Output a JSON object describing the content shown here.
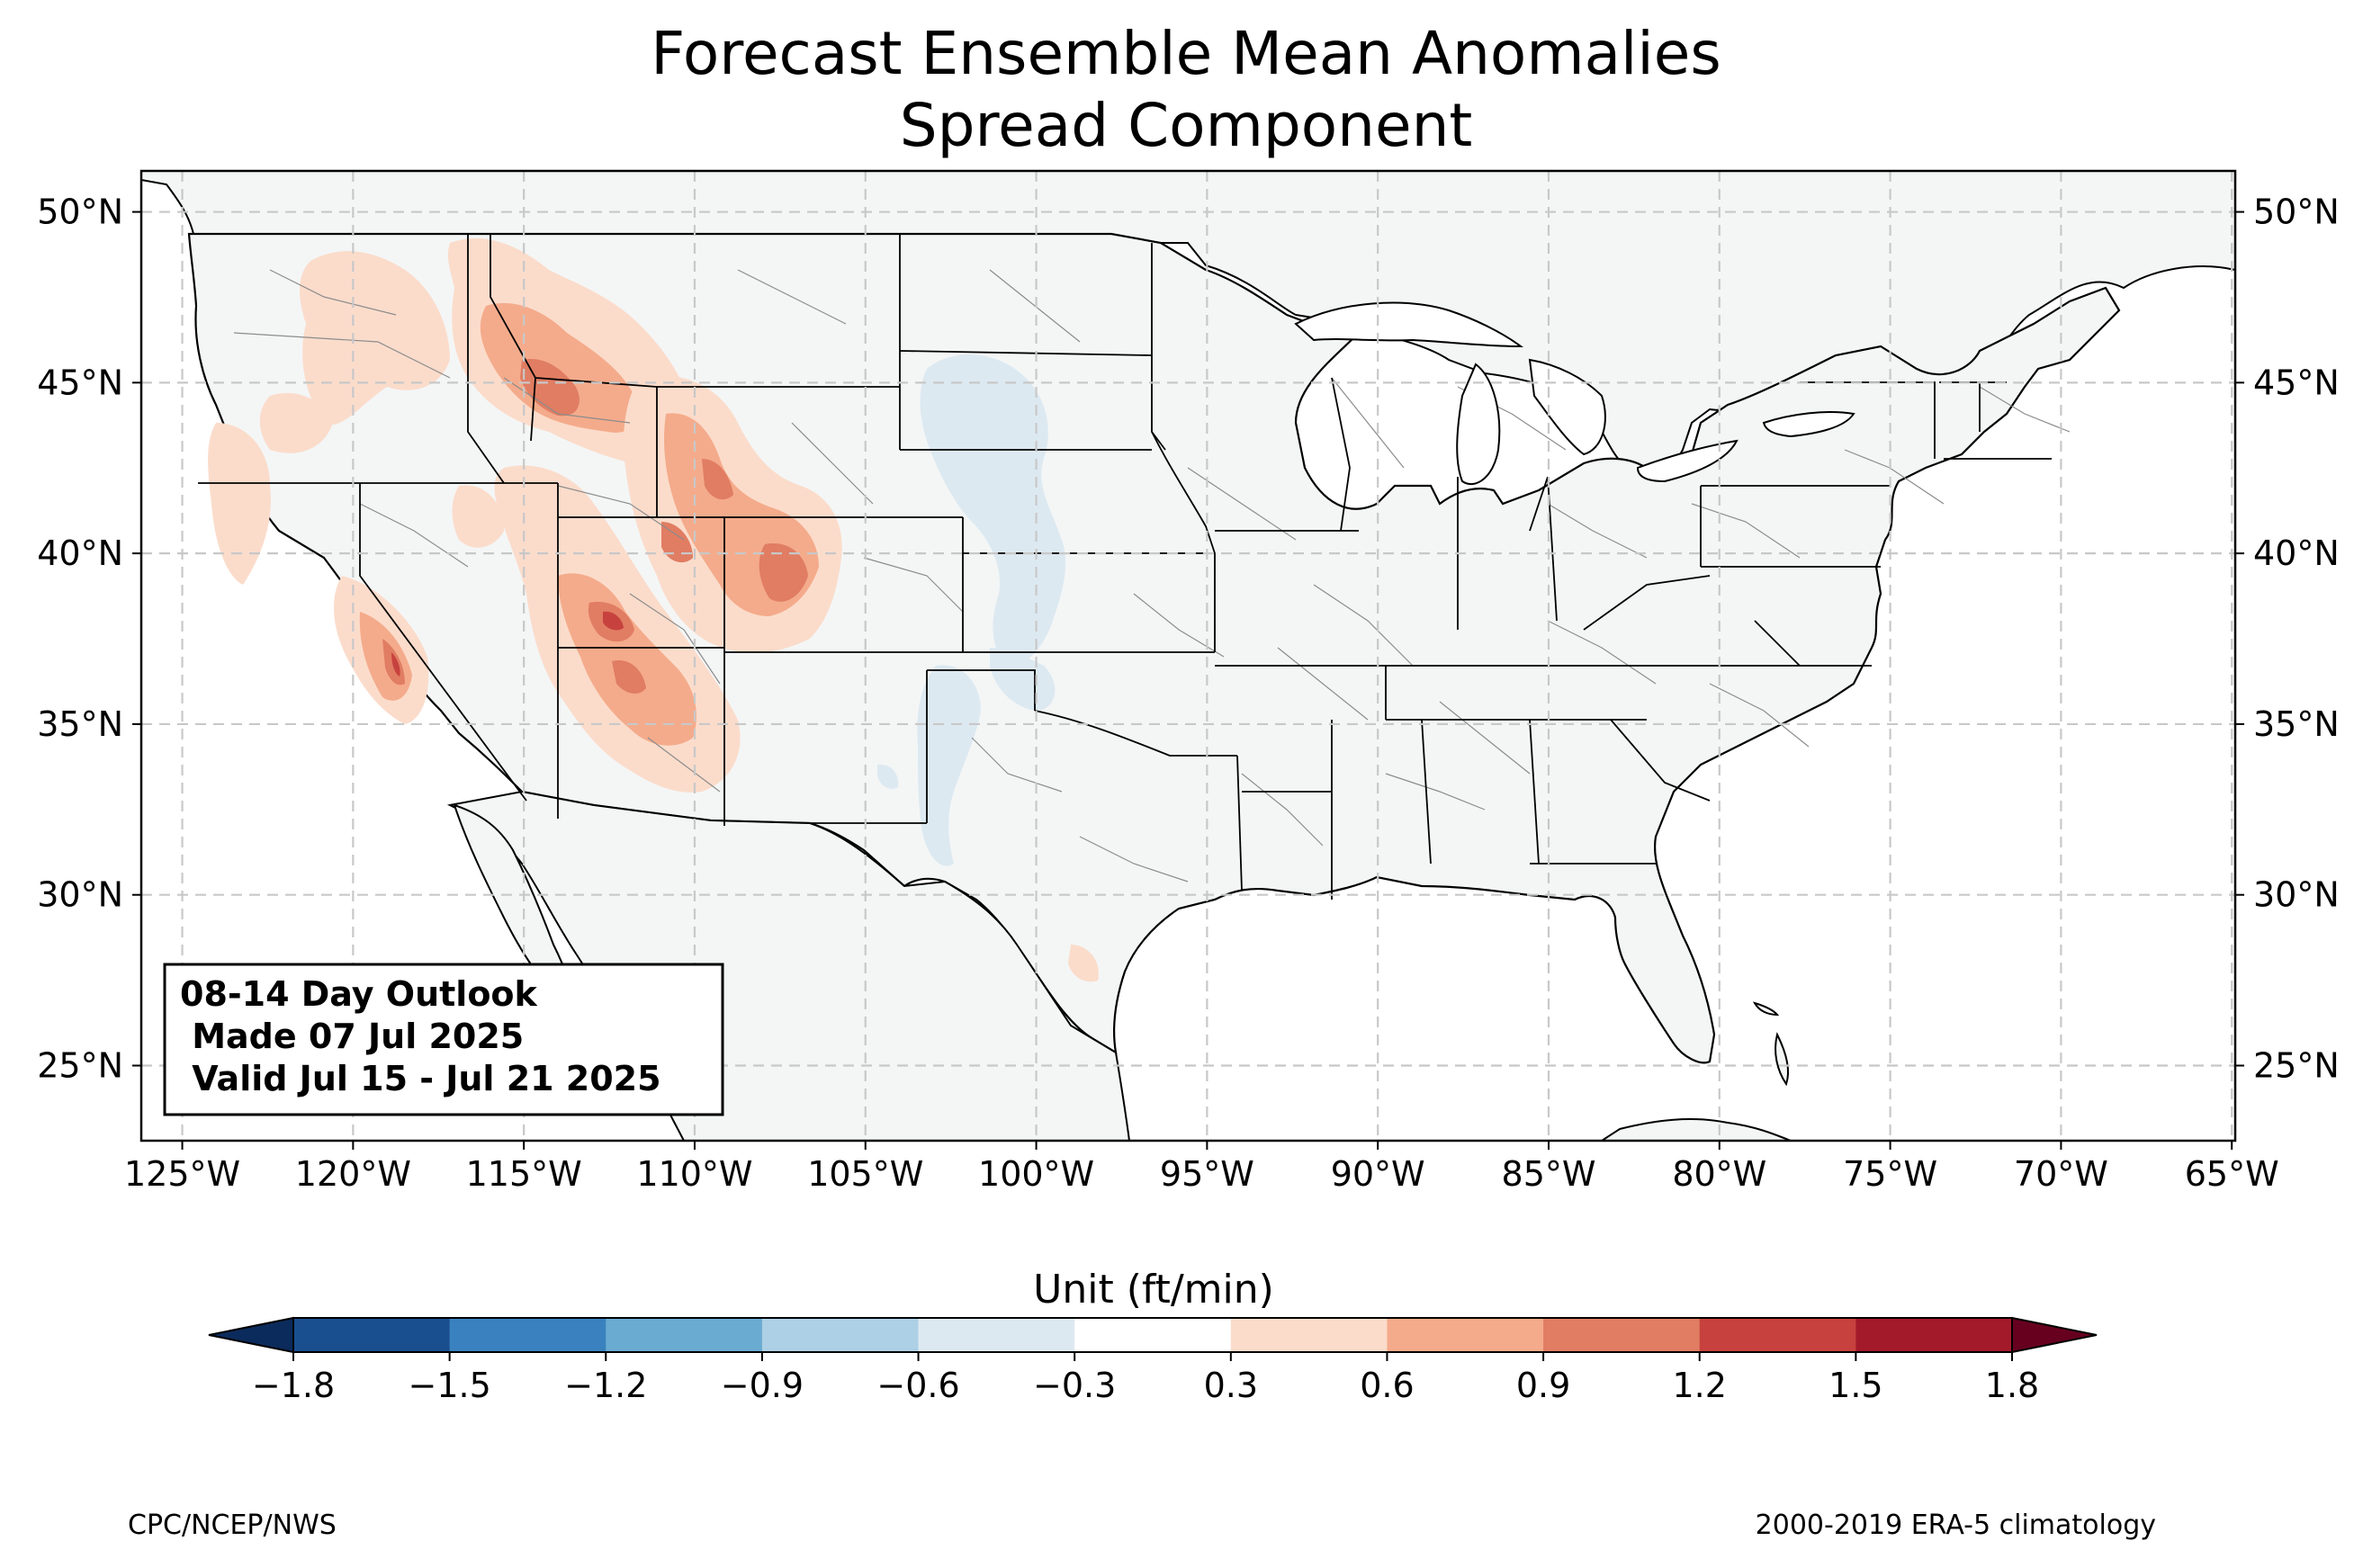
{
  "title": {
    "line1": "Forecast Ensemble Mean Anomalies",
    "line2": "Spread Component"
  },
  "map": {
    "lat_ticks": [
      "50°N",
      "45°N",
      "40°N",
      "35°N",
      "30°N",
      "25°N"
    ],
    "lon_ticks": [
      "125°W",
      "120°W",
      "115°W",
      "110°W",
      "105°W",
      "100°W",
      "95°W",
      "90°W",
      "85°W",
      "80°W",
      "75°W",
      "70°W",
      "65°W"
    ],
    "extent": {
      "lon_min": -126.2,
      "lon_max": -64.9,
      "lat_min": 22.8,
      "lat_max": 51.2
    },
    "colors": {
      "land": "#f4f6f6",
      "border": "#000000",
      "county": "#8c8c8c",
      "grid": "#c8c8c8"
    },
    "anomaly_regions": [
      {
        "region": "Idaho / western Montana",
        "level": "0.6 to 1.2"
      },
      {
        "region": "Wyoming / Colorado",
        "level": "0.6 to 1.2"
      },
      {
        "region": "Utah / northern Arizona",
        "level": "0.6 to 1.2"
      },
      {
        "region": "central California",
        "level": "0.9 to 1.5"
      },
      {
        "region": "South Dakota / Nebraska",
        "level": "-0.6 to -0.3"
      },
      {
        "region": "eastern New Mexico / western Texas",
        "level": "-0.6 to -0.3"
      }
    ]
  },
  "info_box": {
    "line1": "08-14 Day Outlook",
    "line2": " Made 07 Jul 2025",
    "line3": " Valid Jul 15 - Jul 21 2025"
  },
  "colorbar": {
    "label": "Unit (ft/min)",
    "ticks": [
      "−1.8",
      "−1.5",
      "−1.2",
      "−0.9",
      "−0.6",
      "−0.3",
      "0.3",
      "0.6",
      "0.9",
      "1.2",
      "1.5",
      "1.8"
    ],
    "colors": [
      "#1a4f8f",
      "#3a82bf",
      "#6aabd2",
      "#aed0e6",
      "#dde9f1",
      "#ffffff",
      "#fbdccb",
      "#f4ab8b",
      "#e07d63",
      "#c7423e",
      "#a31a2b"
    ],
    "under_color": "#0b2b5c",
    "over_color": "#67001f"
  },
  "footer": {
    "left": "CPC/NCEP/NWS",
    "right": "2000-2019 ERA-5 climatology"
  }
}
